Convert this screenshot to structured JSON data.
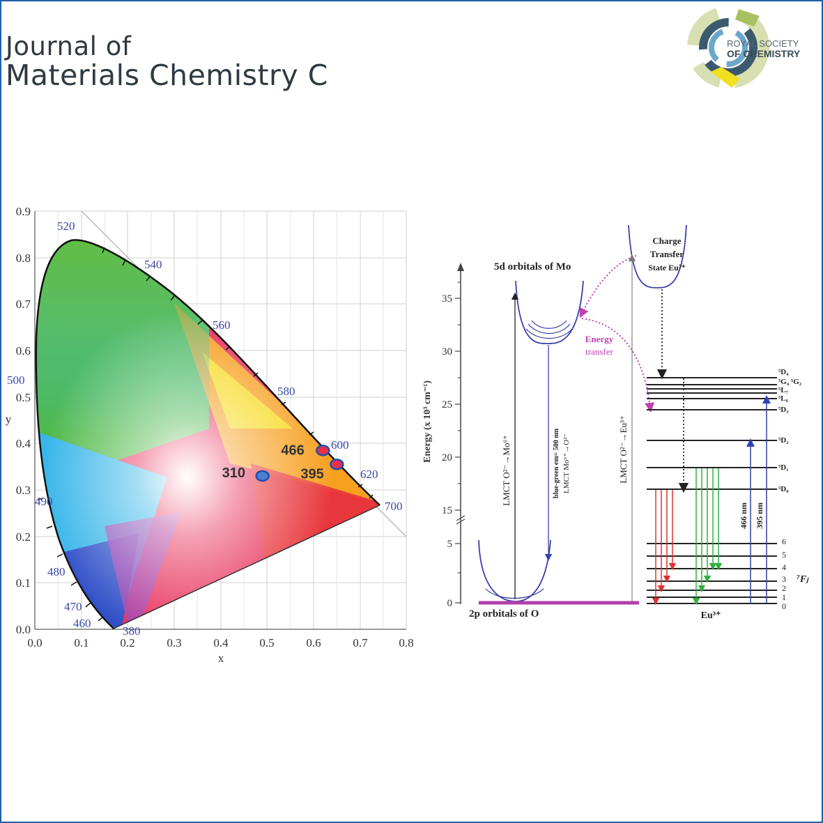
{
  "header": {
    "journal_line1": "Journal of",
    "journal_line2": "Materials Chemistry C",
    "publisher_line1": "ROYAL SOCIETY",
    "publisher_line2": "OF CHEMISTRY"
  },
  "cie": {
    "xlabel": "x",
    "ylabel": "y",
    "xticks": [
      "0.0",
      "0.1",
      "0.2",
      "0.3",
      "0.4",
      "0.5",
      "0.6",
      "0.7",
      "0.8"
    ],
    "yticks": [
      "0.0",
      "0.1",
      "0.2",
      "0.3",
      "0.4",
      "0.5",
      "0.6",
      "0.7",
      "0.8",
      "0.9"
    ],
    "wavelengths": [
      "520",
      "540",
      "560",
      "580",
      "600",
      "620",
      "700",
      "500",
      "490",
      "480",
      "470",
      "460",
      "380"
    ],
    "points": [
      {
        "label": "310",
        "x": 0.49,
        "y": 0.33
      },
      {
        "label": "466",
        "x": 0.62,
        "y": 0.385
      },
      {
        "label": "395",
        "x": 0.65,
        "y": 0.355
      }
    ],
    "colors": {
      "marker": "#4a7fd0",
      "marker_border": "#1d4fb0",
      "label_text": "#333333"
    }
  },
  "energy": {
    "ylabel": "Energy (x 10³ cm⁻¹)",
    "yticks_upper": [
      "35",
      "30",
      "25",
      "20",
      "15"
    ],
    "yticks_lower": [
      "5",
      "0"
    ],
    "mo_label": "5d orbitals  of Mo",
    "o_label": "2p orbitals  of O",
    "ct_label_1": "Charge",
    "ct_label_2": "Transfer",
    "ct_label_3": "State Eu³⁺",
    "energy_transfer_1": "Energy",
    "energy_transfer_2": "transfer",
    "lmct_mo": "LMCT O²⁻→Mo⁶⁺",
    "bluegreen_1": "blue-green em= 500 nm",
    "bluegreen_2": "LMCT Mo⁶⁺→O²⁻",
    "lmct_eu": "LMCT O²⁻→Eu³⁺",
    "nm466": "466 nm",
    "nm395": "395 nm",
    "eu_label": "Eu³⁺",
    "fj_label": "⁷Fⱼ",
    "levels": [
      "⁵D₄",
      "⁵G₄ ⁵G₂",
      "⁵L₇",
      "⁵L₆",
      "⁵D₃",
      "⁵D₂",
      "⁵D₁",
      "⁵D₀"
    ],
    "f_levels": [
      "6",
      "5",
      "4",
      "3",
      "2",
      "1",
      "0"
    ],
    "colors": {
      "curve": "#3a3fa8",
      "energy_transfer": "#c040b0",
      "red": "#e03030",
      "green": "#30b040",
      "blue": "#3040b0"
    }
  }
}
